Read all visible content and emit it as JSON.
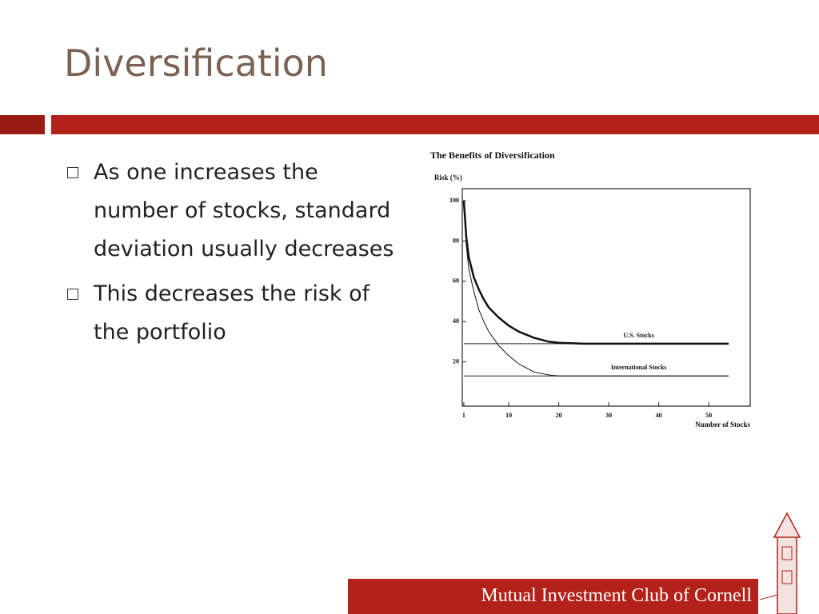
{
  "title": "Diversification",
  "bullets": [
    "As one increases the number of stocks, standard deviation usually decreases",
    "This decreases the risk of the portfolio"
  ],
  "footer": "Mutual Investment Club of Cornell",
  "chart_data": {
    "type": "line",
    "title": "The Benefits of Diversification",
    "y_label": "Risk (%)",
    "x_label": "Number of Stocks",
    "x": [
      1,
      1.5,
      2,
      3,
      4,
      5,
      6,
      8,
      10,
      12,
      15,
      18,
      20,
      25,
      30,
      40,
      54
    ],
    "series": [
      {
        "name": "U.S. Stocks",
        "color": "#111111",
        "values": [
          100,
          82,
          72,
          62,
          56,
          51,
          47,
          42,
          38,
          35,
          32,
          30,
          29.5,
          29,
          29,
          29,
          29
        ]
      },
      {
        "name": "International Stocks",
        "color": "#111111",
        "values": [
          100,
          78,
          66,
          55,
          46,
          40,
          35,
          28,
          23,
          19,
          15,
          13.5,
          13,
          13,
          13,
          13,
          13
        ]
      }
    ],
    "reference_lines": [
      29,
      13
    ],
    "xlim": [
      0.7,
      58.3
    ],
    "ylim": [
      -2,
      106
    ],
    "xticks": [
      1,
      10,
      20,
      30,
      40,
      50
    ],
    "yticks": [
      20,
      40,
      60,
      80,
      100
    ]
  }
}
